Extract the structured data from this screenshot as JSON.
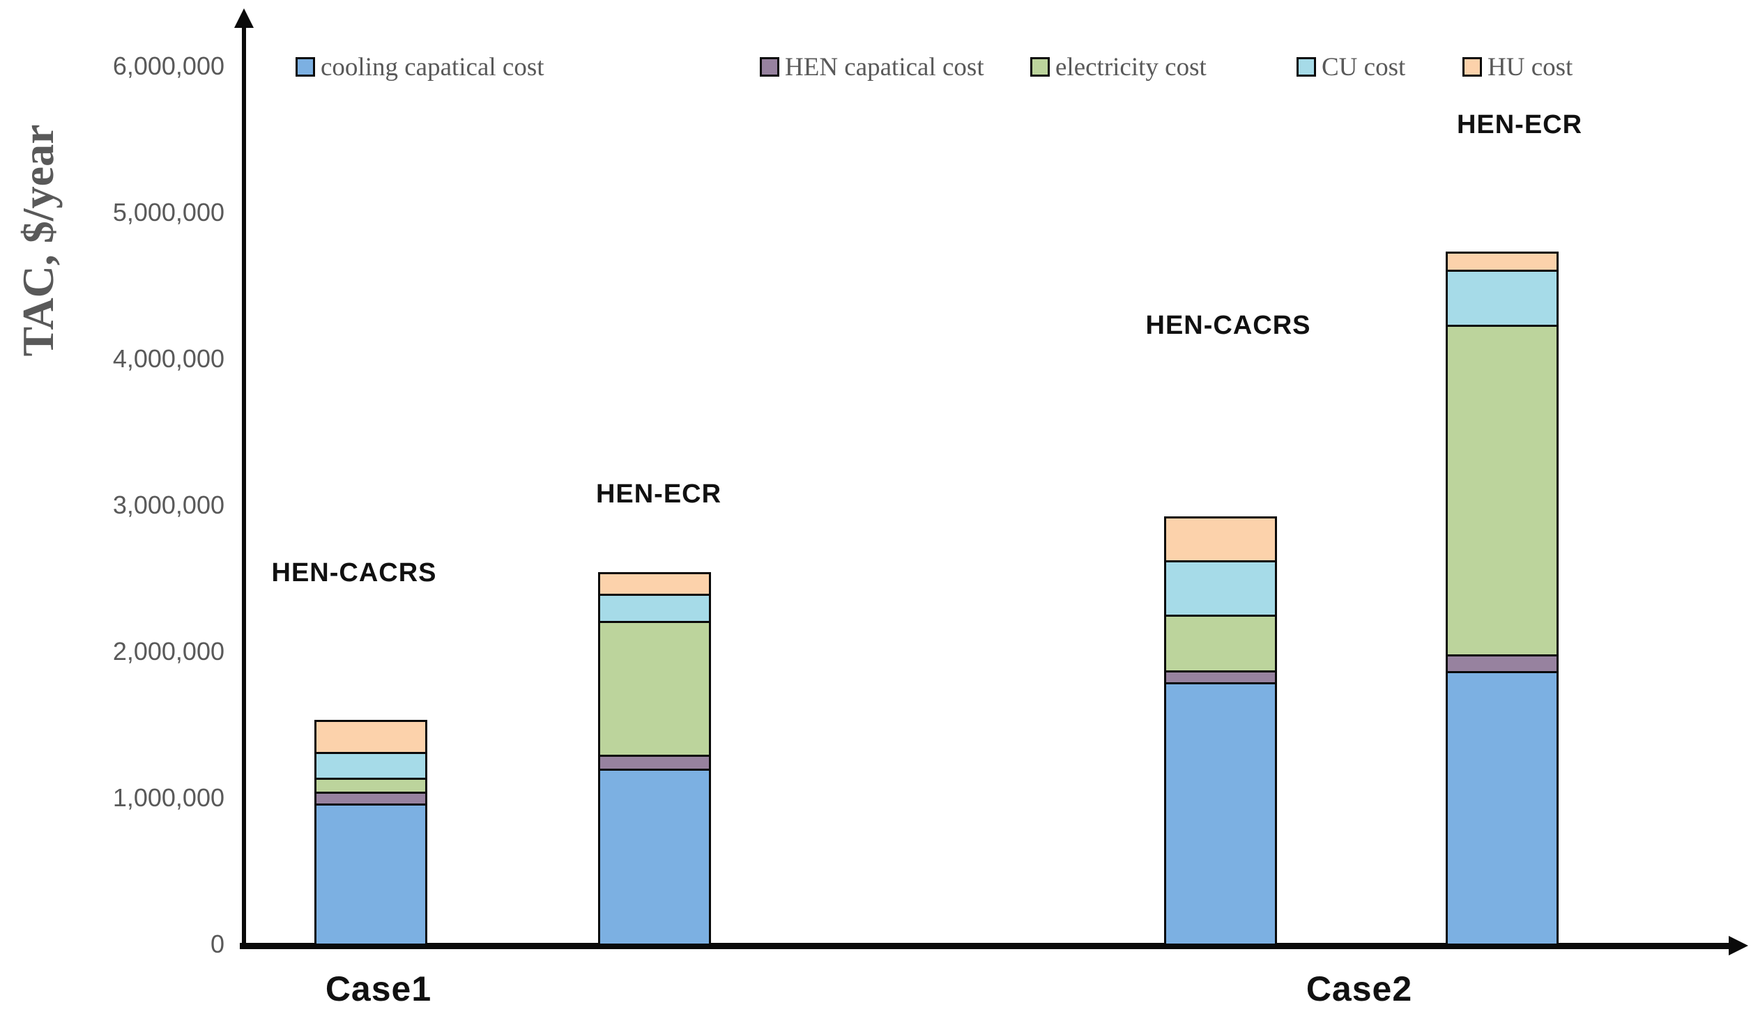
{
  "chart_data": {
    "type": "bar",
    "subtype": "stacked",
    "title": "",
    "ylabel": "TAC, $/year",
    "xlabel": "",
    "ylim": [
      0,
      6000000
    ],
    "ytick_interval": 1000000,
    "ytick_labels": [
      "0",
      "1,000,000",
      "2,000,000",
      "3,000,000",
      "4,000,000",
      "5,000,000",
      "6,000,000"
    ],
    "grid": false,
    "legend_position": "top",
    "categories": [
      "Case1",
      "Case2"
    ],
    "bar_labels": [
      "HEN-CACRS",
      "HEN-ECR",
      "HEN-CACRS",
      "HEN-ECR"
    ],
    "bar_category_map": [
      "Case1",
      "Case1",
      "Case2",
      "Case2"
    ],
    "series": [
      {
        "name": "cooling capatical cost",
        "color": "#7CB0E2",
        "values": [
          970000,
          1210000,
          1800000,
          1875000
        ]
      },
      {
        "name": "HEN capatical cost",
        "color": "#97829F",
        "values": [
          95000,
          110000,
          95000,
          130000
        ]
      },
      {
        "name": "electricity cost",
        "color": "#BCD49C",
        "values": [
          110000,
          930000,
          395000,
          2265000
        ]
      },
      {
        "name": "CU cost",
        "color": "#A6DBE8",
        "values": [
          190000,
          200000,
          385000,
          390000
        ]
      },
      {
        "name": "HU cost",
        "color": "#FCD2AB",
        "values": [
          235000,
          160000,
          315000,
          140000
        ]
      }
    ],
    "bar_totals": [
      1600000,
      2610000,
      2990000,
      4800000
    ]
  },
  "colors": {
    "axis": "#0a0a0a",
    "tick_text": "#595959",
    "label_text": "#111111"
  }
}
